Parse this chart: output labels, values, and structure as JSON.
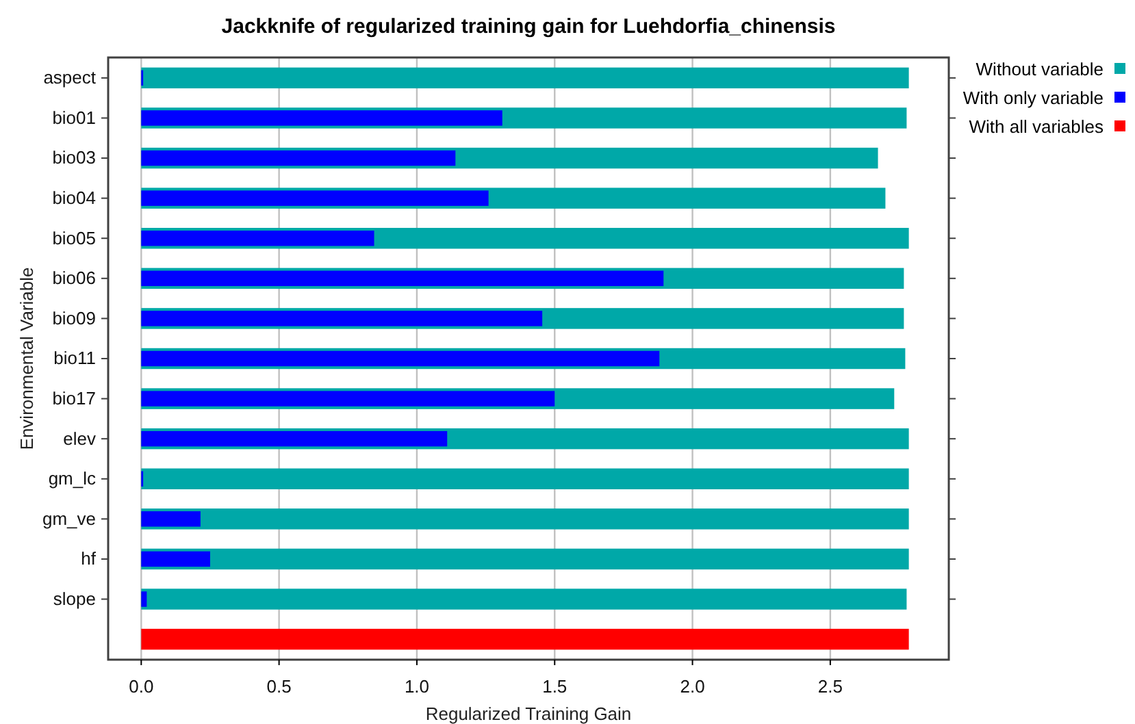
{
  "chart_data": {
    "type": "bar",
    "orientation": "horizontal",
    "title": "Jackknife of regularized training gain for Luehdorfia_chinensis",
    "xlabel": "Regularized Training Gain",
    "ylabel": "Environmental Variable",
    "categories": [
      "aspect",
      "bio01",
      "bio03",
      "bio04",
      "bio05",
      "bio06",
      "bio09",
      "bio11",
      "bio17",
      "elev",
      "gm_lc",
      "gm_ve",
      "hf",
      "slope",
      null
    ],
    "series": [
      {
        "name": "Without variable",
        "color": "#00a8a8",
        "values": [
          2.785,
          2.777,
          2.673,
          2.7,
          2.785,
          2.767,
          2.767,
          2.772,
          2.732,
          2.785,
          2.785,
          2.785,
          2.785,
          2.777,
          null
        ]
      },
      {
        "name": "With only variable",
        "color": "#0000ff",
        "values": [
          0.007,
          1.31,
          1.14,
          1.26,
          0.845,
          1.895,
          1.455,
          1.88,
          1.5,
          1.11,
          0.007,
          0.215,
          0.25,
          0.02,
          null
        ]
      },
      {
        "name": "With all variables",
        "color": "#ff0000",
        "values": [
          null,
          null,
          null,
          null,
          null,
          null,
          null,
          null,
          null,
          null,
          null,
          null,
          null,
          null,
          2.785
        ]
      }
    ],
    "xlim": [
      -0.12,
      2.93
    ],
    "xticks": [
      {
        "value": 0,
        "label": "0.0"
      },
      0.5,
      {
        "value": 1,
        "label": "1.0"
      },
      1.5,
      {
        "value": 2,
        "label": "2.0"
      },
      2.5
    ],
    "grid": "x",
    "legend": "right"
  }
}
